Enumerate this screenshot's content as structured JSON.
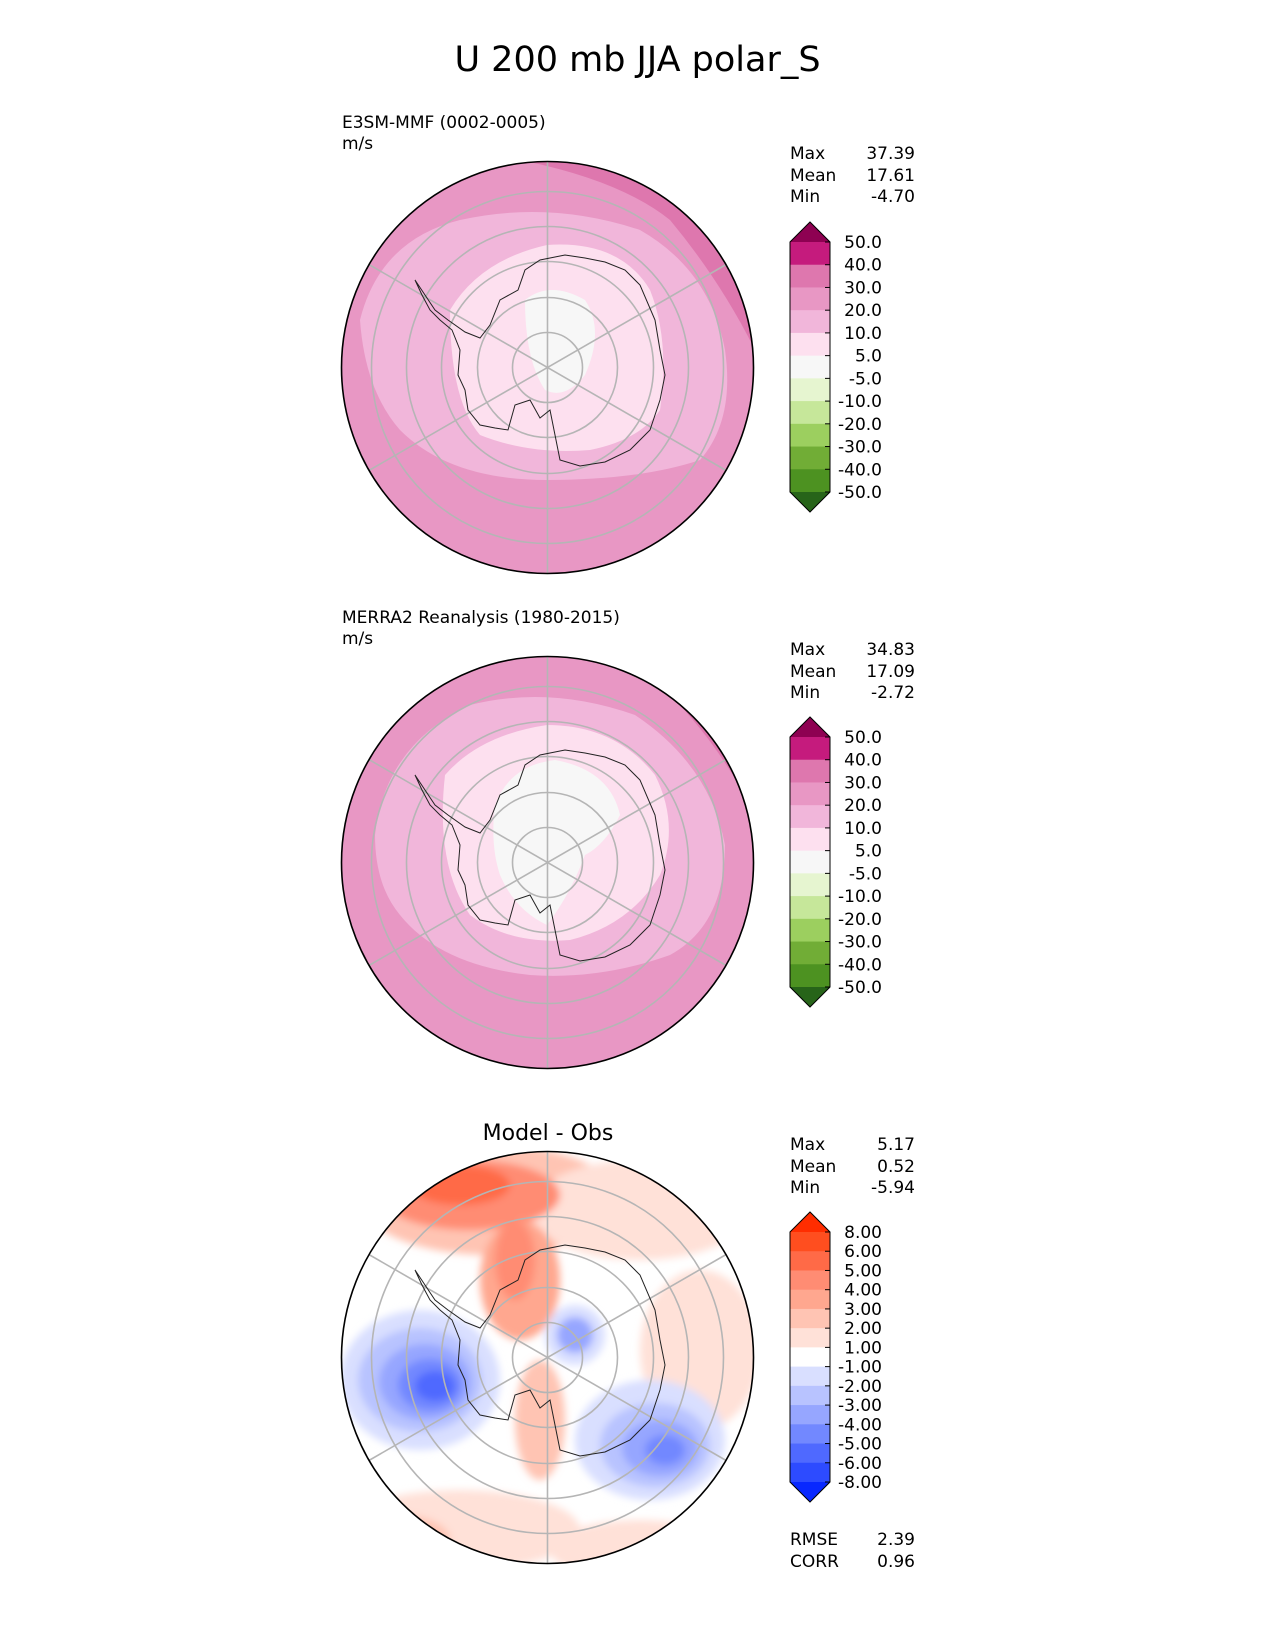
{
  "figure_title": "U 200 mb JJA polar_S",
  "panels": [
    {
      "title": "E3SM-MMF (0002-0005)",
      "units": "m/s",
      "stats": [
        {
          "label": "Max",
          "value": "37.39"
        },
        {
          "label": "Mean",
          "value": "17.61"
        },
        {
          "label": "Min",
          "value": "-4.70"
        }
      ],
      "colorbar": {
        "ticks": [
          "50.0",
          "40.0",
          "30.0",
          "20.0",
          "10.0",
          "5.0",
          "-5.0",
          "-10.0",
          "-20.0",
          "-30.0",
          "-40.0",
          "-50.0"
        ],
        "colors": [
          "#8e0152",
          "#c51b7d",
          "#de77ae",
          "#e897c4",
          "#f1b6da",
          "#fde0ef",
          "#f7f7f7",
          "#e6f5d0",
          "#c6e79a",
          "#9ccf5f",
          "#71ad36",
          "#4d9221",
          "#276419"
        ]
      }
    },
    {
      "title": "MERRA2 Reanalysis (1980-2015)",
      "units": "m/s",
      "stats": [
        {
          "label": "Max",
          "value": "34.83"
        },
        {
          "label": "Mean",
          "value": "17.09"
        },
        {
          "label": "Min",
          "value": "-2.72"
        }
      ],
      "colorbar": {
        "ticks": [
          "50.0",
          "40.0",
          "30.0",
          "20.0",
          "10.0",
          "5.0",
          "-5.0",
          "-10.0",
          "-20.0",
          "-30.0",
          "-40.0",
          "-50.0"
        ],
        "colors": [
          "#8e0152",
          "#c51b7d",
          "#de77ae",
          "#e897c4",
          "#f1b6da",
          "#fde0ef",
          "#f7f7f7",
          "#e6f5d0",
          "#c6e79a",
          "#9ccf5f",
          "#71ad36",
          "#4d9221",
          "#276419"
        ]
      }
    },
    {
      "title": "Model - Obs",
      "stats": [
        {
          "label": "Max",
          "value": "5.17"
        },
        {
          "label": "Mean",
          "value": "0.52"
        },
        {
          "label": "Min",
          "value": "-5.94"
        }
      ],
      "metrics": [
        {
          "label": "RMSE",
          "value": "2.39"
        },
        {
          "label": "CORR",
          "value": "0.96"
        }
      ],
      "colorbar": {
        "ticks": [
          "8.00",
          "6.00",
          "5.00",
          "4.00",
          "3.00",
          "2.00",
          "1.00",
          "-1.00",
          "-2.00",
          "-3.00",
          "-4.00",
          "-5.00",
          "-6.00",
          "-8.00"
        ],
        "colors": [
          "#ff2d00",
          "#ff4e1f",
          "#ff6a47",
          "#ff8c73",
          "#ffa78f",
          "#ffc4b3",
          "#ffe1d8",
          "#ffffff",
          "#d9dfff",
          "#b8c3ff",
          "#96a6ff",
          "#7288ff",
          "#4f69ff",
          "#2d4bff",
          "#0828ff"
        ]
      }
    }
  ],
  "chart_data": [
    {
      "type": "heatmap",
      "projection": "south polar stereographic",
      "title": "E3SM-MMF (0002-0005)",
      "units": "m/s",
      "variable": "U 200 mb JJA",
      "levels": [
        -50,
        -40,
        -30,
        -20,
        -10,
        -5,
        5,
        10,
        20,
        30,
        40,
        50
      ],
      "summary": {
        "max": 37.39,
        "mean": 17.61,
        "min": -4.7
      }
    },
    {
      "type": "heatmap",
      "projection": "south polar stereographic",
      "title": "MERRA2 Reanalysis (1980-2015)",
      "units": "m/s",
      "variable": "U 200 mb JJA",
      "levels": [
        -50,
        -40,
        -30,
        -20,
        -10,
        -5,
        5,
        10,
        20,
        30,
        40,
        50
      ],
      "summary": {
        "max": 34.83,
        "mean": 17.09,
        "min": -2.72
      }
    },
    {
      "type": "heatmap",
      "projection": "south polar stereographic",
      "title": "Model - Obs",
      "variable": "U 200 mb JJA difference",
      "levels": [
        -8,
        -6,
        -5,
        -4,
        -3,
        -2,
        -1,
        1,
        2,
        3,
        4,
        5,
        6,
        8
      ],
      "summary": {
        "max": 5.17,
        "mean": 0.52,
        "min": -5.94,
        "rmse": 2.39,
        "corr": 0.96
      }
    }
  ]
}
